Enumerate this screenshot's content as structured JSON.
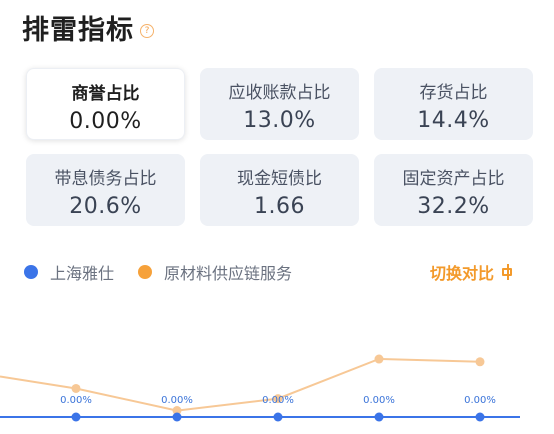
{
  "header": {
    "title": "排雷指标",
    "help_icon": "question-mark-icon",
    "help_glyph": "?"
  },
  "cards": [
    {
      "label": "商誉占比",
      "value": "0.00%",
      "active": true
    },
    {
      "label": "应收账款占比",
      "value": "13.0%"
    },
    {
      "label": "存货占比",
      "value": "14.4%"
    },
    {
      "label": "带息债务占比",
      "value": "20.6%"
    },
    {
      "label": "现金短债比",
      "value": "1.66"
    },
    {
      "label": "固定资产占比",
      "value": "32.2%"
    }
  ],
  "legend": [
    {
      "name": "上海雅仕",
      "color": "#3b74e8"
    },
    {
      "name": "原材料供应链服务",
      "color": "#f6a13a"
    }
  ],
  "switch": {
    "label": "切换对比",
    "icon": "compare-toggle-icon"
  },
  "chart_data": {
    "type": "line",
    "x": [
      0,
      1,
      2,
      3,
      4
    ],
    "series": [
      {
        "name": "上海雅仕",
        "color": "#3b74e8",
        "values": [
          0.0,
          0.0,
          0.0,
          0.0,
          0.0
        ],
        "labels": [
          "0.00%",
          "0.00%",
          "0.00%",
          "0.00%",
          "0.00%"
        ]
      },
      {
        "name": "原材料供应链服务",
        "color": "#f7c896",
        "values": [
          3.1,
          0.7,
          2.0,
          6.3,
          6.0
        ]
      }
    ],
    "ylim": [
      0,
      10
    ]
  }
}
